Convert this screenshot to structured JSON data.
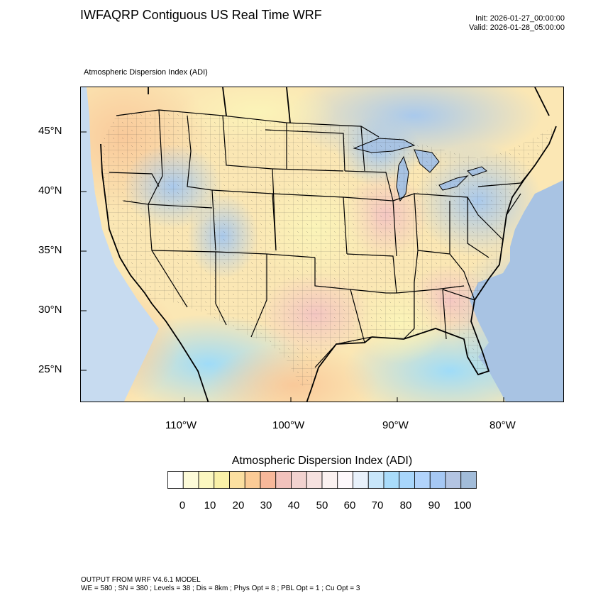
{
  "header": {
    "title": "IWFAQRP Contiguous US Real Time WRF",
    "init": "Init: 2026-01-27_00:00:00",
    "valid": "Valid: 2026-01-28_05:00:00"
  },
  "map": {
    "field_label": "Atmospheric Dispersion Index   (ADI)",
    "lat_labels": [
      "45°N",
      "40°N",
      "35°N",
      "30°N",
      "25°N"
    ],
    "lon_labels": [
      "110°W",
      "100°W",
      "90°W",
      "80°W"
    ]
  },
  "colorbar": {
    "title": "Atmospheric Dispersion Index  (ADI)",
    "tick_labels": [
      "0",
      "10",
      "20",
      "30",
      "40",
      "50",
      "60",
      "70",
      "80",
      "90",
      "100"
    ],
    "colors": [
      "#ffffff",
      "#fdfbd8",
      "#fbf7c0",
      "#faf1a8",
      "#fbdfa0",
      "#fbcb96",
      "#f8b89a",
      "#f2c2bc",
      "#f2d2cf",
      "#f6e1df",
      "#fbf1f0",
      "#fdf8fb",
      "#e8f1fb",
      "#c8e6fa",
      "#a9dcfb",
      "#a8d6fb",
      "#b1d3fb",
      "#a6c8f4",
      "#b3c4e2",
      "#a2bcd9"
    ]
  },
  "footer": {
    "line1": "OUTPUT FROM WRF V4.6.1 MODEL",
    "line2": "WE = 580 ; SN = 380 ; Levels = 38 ; Dis = 8km ; Phys Opt = 8 ; PBL Opt = 1 ; Cu Opt = 3"
  }
}
